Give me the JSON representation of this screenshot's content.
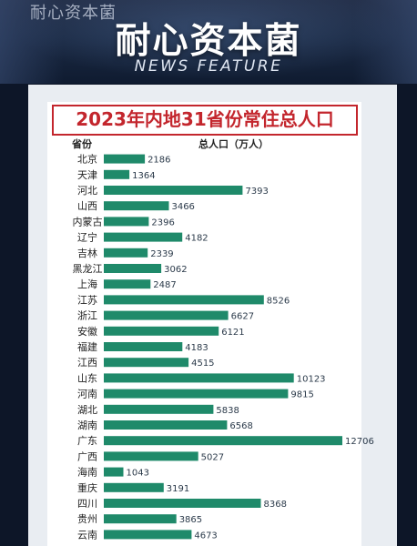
{
  "header": {
    "watermark": "耐心资本菌",
    "brand": "耐心资本菌",
    "subtitle": "NEWS FEATURE"
  },
  "chart_data": {
    "type": "bar",
    "orientation": "horizontal",
    "title": "2023年内地31省份常住总人口",
    "category_header": "省份",
    "value_header": "总人口（万人）",
    "bar_color": "#1f8a6a",
    "label_color_default": "#2b3a4a",
    "label_color_inside": "#ffffff",
    "title_color": "#c3262d",
    "categories": [
      "北京",
      "天津",
      "河北",
      "山西",
      "内蒙古",
      "辽宁",
      "吉林",
      "黑龙江",
      "上海",
      "江苏",
      "浙江",
      "安徽",
      "福建",
      "江西",
      "山东",
      "河南",
      "湖北",
      "湖南",
      "广东",
      "广西",
      "海南",
      "重庆",
      "四川",
      "贵州",
      "云南"
    ],
    "values": [
      2186,
      1364,
      7393,
      3466,
      2396,
      4182,
      2339,
      3062,
      2487,
      8526,
      6627,
      6121,
      4183,
      4515,
      10123,
      9815,
      5838,
      6568,
      12706,
      5027,
      1043,
      3191,
      8368,
      3865,
      4673
    ],
    "xlim": [
      0,
      12706
    ]
  }
}
